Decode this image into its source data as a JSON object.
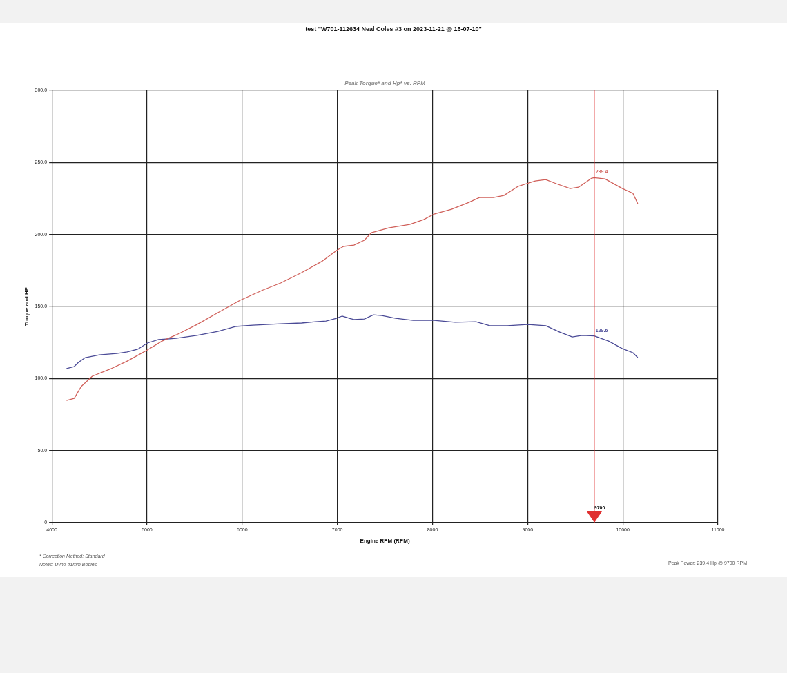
{
  "chart_data": {
    "type": "line",
    "title": "test \"W701-112634 Neal Coles #3 on 2023-11-21 @ 15-07-10\"",
    "subtitle": "Peak Torque* and Hp* vs. RPM",
    "xlabel": "Engine RPM (RPM)",
    "ylabel": "Torque and HP",
    "xlim": [
      4000,
      11000
    ],
    "xticks": [
      4000,
      5000,
      6000,
      7000,
      8000,
      9000,
      10000,
      11000
    ],
    "ylim": [
      0,
      300
    ],
    "yticks": [
      0,
      {
        "value": 50,
        "label": "50.0"
      },
      {
        "value": 100,
        "label": "100.0"
      },
      {
        "value": 150,
        "label": "150.0"
      },
      {
        "value": 200,
        "label": "200.0"
      },
      {
        "value": 250,
        "label": "250.0"
      },
      {
        "value": 300,
        "label": "300.0"
      }
    ],
    "grid": true,
    "legend": false,
    "marker": "none",
    "line_style": "solid",
    "series": [
      {
        "color": "#d0605a",
        "x": [
          4154,
          4235,
          4308,
          4425,
          4608,
          4792,
          5004,
          5158,
          5341,
          5525,
          5745,
          5979,
          6221,
          6404,
          6624,
          6844,
          6991,
          7064,
          7174,
          7284,
          7357,
          7540,
          7760,
          7907,
          8017,
          8200,
          8383,
          8493,
          8640,
          8750,
          8896,
          9080,
          9190,
          9300,
          9447,
          9535,
          9674,
          9700,
          9813,
          9996,
          10106,
          10157
        ],
        "values": [
          84.8,
          86.2,
          94.4,
          101.6,
          106.4,
          112.1,
          119.8,
          126.0,
          131.3,
          137.5,
          145.7,
          154.3,
          161.5,
          166.3,
          173.5,
          181.6,
          188.8,
          191.7,
          192.6,
          196.0,
          201.2,
          204.6,
          207.0,
          210.3,
          214.2,
          217.5,
          222.3,
          225.7,
          225.7,
          227.1,
          233.3,
          237.2,
          238.1,
          235.3,
          231.9,
          232.8,
          239.1,
          239.4,
          238.6,
          231.9,
          228.6,
          221.4
        ]
      },
      {
        "color": "#4a4a96",
        "x": [
          4154,
          4235,
          4279,
          4352,
          4499,
          4682,
          4792,
          4902,
          5004,
          5121,
          5305,
          5525,
          5745,
          5928,
          6111,
          6404,
          6624,
          6771,
          6881,
          6991,
          7049,
          7174,
          7284,
          7379,
          7467,
          7613,
          7797,
          8017,
          8237,
          8457,
          8603,
          8786,
          9006,
          9190,
          9337,
          9469,
          9572,
          9700,
          9850,
          9996,
          10106,
          10157
        ],
        "values": [
          106.9,
          108.3,
          111.2,
          114.5,
          116.4,
          117.4,
          118.4,
          120.3,
          124.6,
          127.0,
          127.9,
          129.9,
          132.7,
          136.1,
          137.0,
          138.0,
          138.5,
          139.4,
          139.9,
          141.8,
          143.3,
          140.9,
          141.3,
          144.2,
          143.7,
          141.8,
          140.4,
          140.4,
          139.0,
          139.4,
          136.6,
          136.6,
          137.5,
          136.6,
          132.2,
          128.9,
          129.9,
          129.6,
          126.0,
          120.7,
          117.9,
          114.5
        ]
      }
    ],
    "ref_lines": [
      {
        "axis": "x",
        "value": 9700,
        "label": "9700",
        "color": "#e03030"
      }
    ],
    "annotations": [
      {
        "text": "239.4",
        "x": 9700,
        "y": 239.4
      },
      {
        "text": "129.6",
        "x": 9700,
        "y": 129.6
      },
      "* Correction Method: Standard",
      "Notes: Dyno 41mm Bodies",
      "Peak Power: 239.4 Hp @ 9700 RPM"
    ]
  }
}
